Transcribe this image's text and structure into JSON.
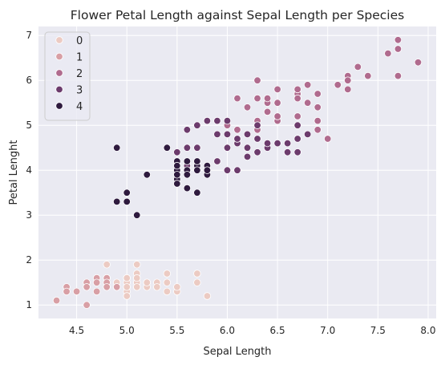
{
  "chart_data": {
    "type": "scatter",
    "title": "Flower Petal Length against Sepal Length per Species",
    "xlabel": "Sepal Length",
    "ylabel": "Petal Lenght",
    "xlim": [
      4.12,
      8.08
    ],
    "ylim": [
      0.7,
      7.2
    ],
    "xticks": [
      "4.5",
      "5.0",
      "5.5",
      "6.0",
      "6.5",
      "7.0",
      "7.5",
      "8.0"
    ],
    "yticks": [
      "1",
      "2",
      "3",
      "4",
      "5",
      "6",
      "7"
    ],
    "grid": true,
    "legend_position": "top-left",
    "hue_colors": {
      "0": "#eccbc3",
      "1": "#d89fa5",
      "2": "#b06b8e",
      "3": "#6c3b6c",
      "4": "#2e1a3e"
    },
    "series": [
      {
        "name": "0",
        "points": [
          [
            5.1,
            1.4
          ],
          [
            4.9,
            1.4
          ],
          [
            5.0,
            1.4
          ],
          [
            5.4,
            1.7
          ],
          [
            5.0,
            1.5
          ],
          [
            4.8,
            1.6
          ],
          [
            5.8,
            1.2
          ],
          [
            5.7,
            1.5
          ],
          [
            5.4,
            1.3
          ],
          [
            5.1,
            1.7
          ],
          [
            5.1,
            1.5
          ],
          [
            5.1,
            1.9
          ],
          [
            4.8,
            1.9
          ],
          [
            5.0,
            1.6
          ],
          [
            5.2,
            1.5
          ],
          [
            5.2,
            1.4
          ],
          [
            4.9,
            1.5
          ],
          [
            5.5,
            1.3
          ],
          [
            5.5,
            1.4
          ],
          [
            4.9,
            1.4
          ],
          [
            5.1,
            1.5
          ],
          [
            5.0,
            1.3
          ],
          [
            5.0,
            1.2
          ],
          [
            5.3,
            1.5
          ],
          [
            5.7,
            1.7
          ],
          [
            5.1,
            1.6
          ],
          [
            5.0,
            1.6
          ],
          [
            5.4,
            1.5
          ],
          [
            5.0,
            1.4
          ],
          [
            5.2,
            1.5
          ],
          [
            5.1,
            1.4
          ],
          [
            5.3,
            1.4
          ]
        ]
      },
      {
        "name": "1",
        "points": [
          [
            4.7,
            1.3
          ],
          [
            4.6,
            1.5
          ],
          [
            4.6,
            1.4
          ],
          [
            4.4,
            1.4
          ],
          [
            4.8,
            1.4
          ],
          [
            4.3,
            1.1
          ],
          [
            4.6,
            1.0
          ],
          [
            4.8,
            1.6
          ],
          [
            4.7,
            1.6
          ],
          [
            4.8,
            1.5
          ],
          [
            4.4,
            1.3
          ],
          [
            4.5,
            1.3
          ],
          [
            4.8,
            1.4
          ],
          [
            4.6,
            1.4
          ],
          [
            4.9,
            1.4
          ],
          [
            4.7,
            1.5
          ]
        ]
      },
      {
        "name": "2",
        "points": [
          [
            6.3,
            6.0
          ],
          [
            7.1,
            5.9
          ],
          [
            6.5,
            5.8
          ],
          [
            7.6,
            6.6
          ],
          [
            7.3,
            6.3
          ],
          [
            7.2,
            6.1
          ],
          [
            6.5,
            5.1
          ],
          [
            6.4,
            5.3
          ],
          [
            6.8,
            5.5
          ],
          [
            6.4,
            5.3
          ],
          [
            6.5,
            5.5
          ],
          [
            7.7,
            6.7
          ],
          [
            7.7,
            6.9
          ],
          [
            6.9,
            5.7
          ],
          [
            7.7,
            6.7
          ],
          [
            6.7,
            5.7
          ],
          [
            7.2,
            6.0
          ],
          [
            7.2,
            5.8
          ],
          [
            7.4,
            6.1
          ],
          [
            7.9,
            6.4
          ],
          [
            7.7,
            6.1
          ],
          [
            6.3,
            5.6
          ],
          [
            6.1,
            5.6
          ],
          [
            6.4,
            5.5
          ],
          [
            6.9,
            5.4
          ],
          [
            6.9,
            5.1
          ],
          [
            6.8,
            5.9
          ],
          [
            6.7,
            5.7
          ],
          [
            6.7,
            5.2
          ],
          [
            6.5,
            5.2
          ],
          [
            6.2,
            5.4
          ],
          [
            6.3,
            5.1
          ],
          [
            6.4,
            5.6
          ],
          [
            6.7,
            5.8
          ],
          [
            6.9,
            4.9
          ],
          [
            7.0,
            4.7
          ],
          [
            6.7,
            5.6
          ],
          [
            6.2,
            4.8
          ],
          [
            6.0,
            5.0
          ],
          [
            6.3,
            4.9
          ],
          [
            6.1,
            4.9
          ],
          [
            6.4,
            5.3
          ]
        ]
      },
      {
        "name": "3",
        "points": [
          [
            6.3,
            4.7
          ],
          [
            5.9,
            4.8
          ],
          [
            6.1,
            4.7
          ],
          [
            6.2,
            4.5
          ],
          [
            6.3,
            4.4
          ],
          [
            6.4,
            4.5
          ],
          [
            6.6,
            4.6
          ],
          [
            6.8,
            4.8
          ],
          [
            6.7,
            5.0
          ],
          [
            6.0,
            4.5
          ],
          [
            6.1,
            4.6
          ],
          [
            5.9,
            5.1
          ],
          [
            6.0,
            5.1
          ],
          [
            6.3,
            5.0
          ],
          [
            6.7,
            4.4
          ],
          [
            6.6,
            4.4
          ],
          [
            6.5,
            4.6
          ],
          [
            6.1,
            4.0
          ],
          [
            6.0,
            4.5
          ],
          [
            5.6,
            4.5
          ],
          [
            5.8,
            5.1
          ],
          [
            5.6,
            4.9
          ],
          [
            5.7,
            5.0
          ],
          [
            6.2,
            4.3
          ],
          [
            6.7,
            4.7
          ],
          [
            6.0,
            4.0
          ],
          [
            5.9,
            4.2
          ],
          [
            5.6,
            4.2
          ],
          [
            6.2,
            4.8
          ],
          [
            6.4,
            4.6
          ],
          [
            5.8,
            4.1
          ],
          [
            5.7,
            4.5
          ],
          [
            5.5,
            4.4
          ],
          [
            5.7,
            4.2
          ],
          [
            5.8,
            4.0
          ],
          [
            6.1,
            4.7
          ],
          [
            6.3,
            5.0
          ],
          [
            5.9,
            5.1
          ],
          [
            5.6,
            4.1
          ],
          [
            5.8,
            5.1
          ],
          [
            6.0,
            4.8
          ]
        ]
      },
      {
        "name": "4",
        "points": [
          [
            4.9,
            4.5
          ],
          [
            5.0,
            3.5
          ],
          [
            5.0,
            3.3
          ],
          [
            4.9,
            3.3
          ],
          [
            5.1,
            3.0
          ],
          [
            5.2,
            3.9
          ],
          [
            5.4,
            4.5
          ],
          [
            5.5,
            4.0
          ],
          [
            5.5,
            3.8
          ],
          [
            5.5,
            3.7
          ],
          [
            5.6,
            3.6
          ],
          [
            5.7,
            3.5
          ],
          [
            5.5,
            4.2
          ],
          [
            5.6,
            4.0
          ],
          [
            5.7,
            4.1
          ],
          [
            5.8,
            3.9
          ],
          [
            5.5,
            3.9
          ],
          [
            5.6,
            3.9
          ],
          [
            5.7,
            4.0
          ],
          [
            5.8,
            4.1
          ],
          [
            5.6,
            4.2
          ],
          [
            5.7,
            4.2
          ],
          [
            5.5,
            4.1
          ],
          [
            5.8,
            4.0
          ]
        ]
      }
    ]
  }
}
